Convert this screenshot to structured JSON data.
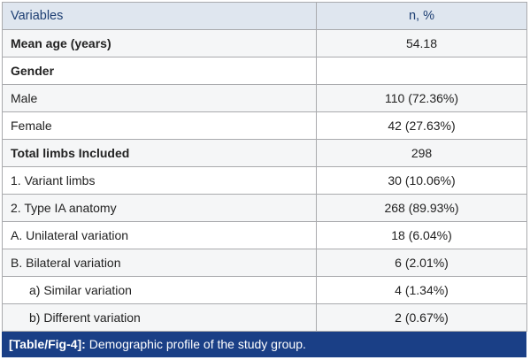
{
  "table": {
    "headers": [
      "Variables",
      "n, %"
    ],
    "rows": [
      {
        "label": "Mean age (years)",
        "value": "54.18",
        "bold": true
      },
      {
        "label": "Gender",
        "value": "",
        "bold": true
      },
      {
        "label": "Male",
        "value": "110 (72.36%)",
        "bold": false
      },
      {
        "label": "Female",
        "value": "42 (27.63%)",
        "bold": false
      },
      {
        "label": "Total limbs Included",
        "value": "298",
        "bold": true
      },
      {
        "label": "1. Variant limbs",
        "value": "30 (10.06%)",
        "bold": false
      },
      {
        "label": "2. Type IA anatomy",
        "value": "268 (89.93%)",
        "bold": false
      },
      {
        "label": "A. Unilateral variation",
        "value": "18 (6.04%)",
        "bold": false
      },
      {
        "label": "B. Bilateral variation",
        "value": "6 (2.01%)",
        "bold": false
      },
      {
        "label": "a) Similar variation",
        "value": "4 (1.34%)",
        "bold": false,
        "indent": true
      },
      {
        "label": "b) Different variation",
        "value": "2 (0.67%)",
        "bold": false,
        "indent": true
      }
    ]
  },
  "caption": {
    "tag": "[Table/Fig-4]:",
    "text": " Demographic profile of the study group."
  },
  "colors": {
    "header_bg": "#dfe6ef",
    "header_text": "#1e3f73",
    "caption_bg": "#1a3f86",
    "border": "#a9aaad"
  }
}
